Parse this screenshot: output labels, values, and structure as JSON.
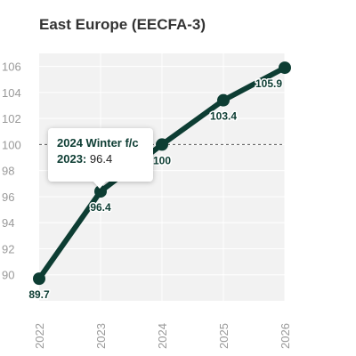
{
  "chart_data": {
    "type": "line",
    "title": "East Europe (EECFA-3)",
    "x": [
      "2022",
      "2023",
      "2024",
      "2025",
      "2026"
    ],
    "series": [
      {
        "values": [
          89.7,
          96.4,
          100,
          103.4,
          105.9
        ],
        "data_labels": [
          "89.7",
          "96.4",
          "100",
          "103.4",
          "105.9"
        ]
      }
    ],
    "yticks": [
      90,
      92,
      94,
      96,
      98,
      100,
      102,
      104,
      106
    ],
    "ylim": [
      88,
      107
    ],
    "reference_line": 100,
    "grid": true,
    "colors": {
      "line": "#0d3d33",
      "plot_bg": "#f2f2f2",
      "grid": "#ffffff"
    }
  },
  "tooltip": {
    "title": "2024 Winter f/c",
    "row_label": "2023:",
    "row_value": "96.4"
  }
}
